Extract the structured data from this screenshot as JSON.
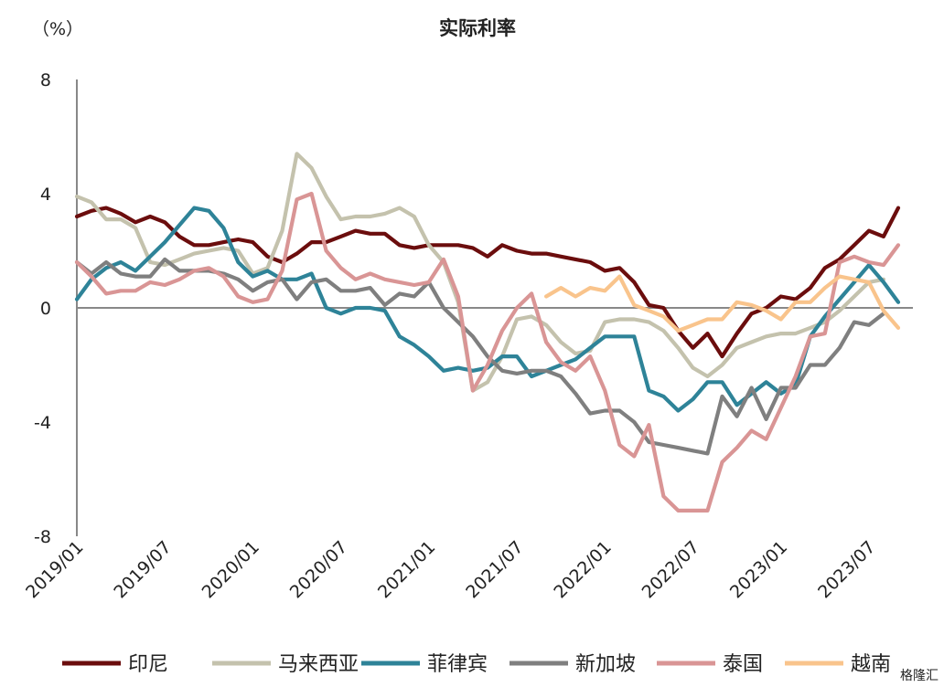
{
  "chart_data": {
    "type": "line",
    "title": "实际利率",
    "unit_label": "（%）",
    "ylim": [
      -8,
      8
    ],
    "yticks": [
      -8,
      -4,
      0,
      4,
      8
    ],
    "ytick_labels": [
      "-8",
      "-4",
      "0",
      "4",
      "8"
    ],
    "xlim": [
      0,
      57
    ],
    "xticks": [
      0,
      6,
      12,
      18,
      24,
      30,
      36,
      42,
      48,
      54
    ],
    "xtick_labels": [
      "2019/01",
      "2019/07",
      "2020/01",
      "2020/07",
      "2021/01",
      "2021/07",
      "2022/01",
      "2022/07",
      "2023/01",
      "2023/07"
    ],
    "x_start": "2019/01",
    "legend_position": "bottom",
    "watermark": "格隆汇",
    "series": [
      {
        "name": "印尼",
        "color": "#6b0d0d",
        "values": [
          3.2,
          3.4,
          3.5,
          3.3,
          3.0,
          3.2,
          3.0,
          2.5,
          2.2,
          2.2,
          2.3,
          2.4,
          2.3,
          1.8,
          1.6,
          1.9,
          2.3,
          2.3,
          2.5,
          2.7,
          2.6,
          2.6,
          2.2,
          2.1,
          2.2,
          2.2,
          2.2,
          2.1,
          1.8,
          2.2,
          2.0,
          1.9,
          1.9,
          1.8,
          1.7,
          1.6,
          1.3,
          1.4,
          0.9,
          0.1,
          0.0,
          -0.8,
          -1.4,
          -0.9,
          -1.7,
          -0.9,
          -0.2,
          0.0,
          0.4,
          0.3,
          0.7,
          1.4,
          1.7,
          2.2,
          2.7,
          2.5,
          3.5
        ]
      },
      {
        "name": "马来西亚",
        "color": "#c4c2ad",
        "values": [
          3.9,
          3.7,
          3.1,
          3.1,
          2.8,
          1.6,
          1.5,
          1.7,
          1.9,
          2.0,
          2.1,
          2.0,
          1.2,
          1.4,
          2.7,
          5.4,
          4.9,
          3.9,
          3.1,
          3.2,
          3.2,
          3.3,
          3.5,
          3.2,
          2.2,
          1.6,
          0.2,
          -2.9,
          -2.6,
          -1.7,
          -0.4,
          -0.3,
          -0.6,
          -1.2,
          -1.6,
          -1.5,
          -0.5,
          -0.4,
          -0.4,
          -0.5,
          -0.8,
          -1.4,
          -2.1,
          -2.4,
          -2.0,
          -1.4,
          -1.2,
          -1.0,
          -0.9,
          -0.9,
          -0.7,
          -0.5,
          -0.1,
          0.4,
          0.9,
          1.0
        ]
      },
      {
        "name": "菲律宾",
        "color": "#2e8398",
        "values": [
          0.3,
          1.0,
          1.4,
          1.6,
          1.3,
          1.8,
          2.3,
          2.9,
          3.5,
          3.4,
          2.8,
          1.6,
          1.1,
          1.3,
          1.0,
          1.0,
          1.2,
          0.0,
          -0.2,
          0.0,
          0.0,
          -0.1,
          -1.0,
          -1.3,
          -1.7,
          -2.2,
          -2.1,
          -2.2,
          -2.1,
          -1.7,
          -1.7,
          -2.4,
          -2.2,
          -2.0,
          -1.8,
          -1.4,
          -1.0,
          -1.0,
          -1.0,
          -2.9,
          -3.1,
          -3.6,
          -3.2,
          -2.6,
          -2.6,
          -3.4,
          -3.0,
          -2.6,
          -3.0,
          -2.7,
          -1.0,
          -0.3,
          0.3,
          0.9,
          1.5,
          0.9,
          0.2
        ]
      },
      {
        "name": "新加坡",
        "color": "#7f7f7f",
        "values": [
          1.6,
          1.2,
          1.6,
          1.2,
          1.1,
          1.1,
          1.7,
          1.3,
          1.3,
          1.3,
          1.2,
          1.0,
          0.6,
          0.9,
          1.0,
          0.3,
          0.9,
          1.0,
          0.6,
          0.6,
          0.7,
          0.1,
          0.5,
          0.4,
          0.9,
          0.0,
          -0.5,
          -1.0,
          -1.7,
          -2.2,
          -2.3,
          -2.2,
          -2.2,
          -2.4,
          -3.0,
          -3.7,
          -3.6,
          -3.6,
          -4.0,
          -4.7,
          -4.8,
          -4.9,
          -5.0,
          -5.1,
          -3.1,
          -3.8,
          -2.8,
          -3.9,
          -2.8,
          -2.8,
          -2.0,
          -2.0,
          -1.4,
          -0.5,
          -0.6,
          -0.2
        ]
      },
      {
        "name": "泰国",
        "color": "#d99595",
        "values": [
          1.6,
          1.1,
          0.5,
          0.6,
          0.6,
          0.9,
          0.8,
          1.0,
          1.3,
          1.4,
          1.1,
          0.4,
          0.2,
          0.3,
          1.3,
          3.8,
          4.0,
          2.0,
          1.4,
          1.0,
          1.2,
          1.0,
          0.9,
          0.8,
          0.9,
          1.7,
          0.4,
          -2.9,
          -2.0,
          -0.8,
          0.0,
          0.5,
          -1.2,
          -1.9,
          -2.2,
          -1.7,
          -2.9,
          -4.8,
          -5.2,
          -4.1,
          -6.6,
          -7.1,
          -7.1,
          -7.1,
          -5.4,
          -4.9,
          -4.3,
          -4.6,
          -3.5,
          -2.4,
          -1.0,
          -0.9,
          1.6,
          1.8,
          1.6,
          1.5,
          2.2
        ]
      },
      {
        "name": "越南",
        "color": "#f9c48c",
        "values": [
          null,
          null,
          null,
          null,
          null,
          null,
          null,
          null,
          null,
          null,
          null,
          null,
          null,
          null,
          null,
          null,
          null,
          null,
          null,
          null,
          null,
          null,
          null,
          null,
          null,
          null,
          null,
          null,
          null,
          null,
          null,
          null,
          0.4,
          0.7,
          0.4,
          0.7,
          0.6,
          1.1,
          0.1,
          -0.1,
          -0.3,
          -0.8,
          -0.6,
          -0.4,
          -0.4,
          0.2,
          0.1,
          -0.1,
          -0.4,
          0.2,
          0.2,
          0.7,
          1.1,
          1.0,
          0.9,
          -0.1,
          -0.7
        ]
      }
    ]
  }
}
